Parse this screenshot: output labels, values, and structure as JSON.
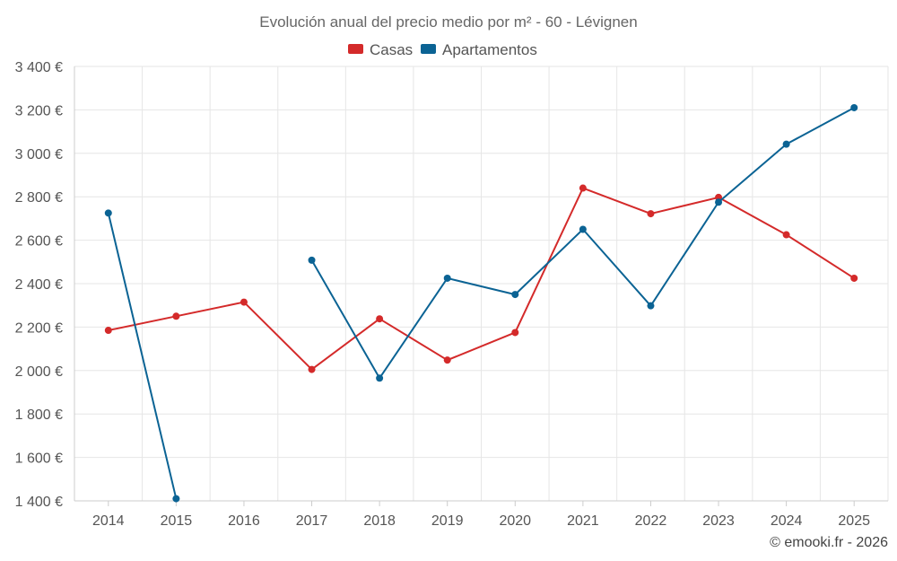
{
  "chart_data": {
    "type": "line",
    "title": "Evolución anual del precio medio por m² - 60 - Lévignen",
    "categories": [
      "2014",
      "2015",
      "2016",
      "2017",
      "2018",
      "2019",
      "2020",
      "2021",
      "2022",
      "2023",
      "2024",
      "2025"
    ],
    "ylim": [
      1400,
      3400
    ],
    "yticks": [
      1400,
      1600,
      1800,
      2000,
      2200,
      2400,
      2600,
      2800,
      3000,
      3200,
      3400
    ],
    "ytick_labels": [
      "1 400 €",
      "1 600 €",
      "1 800 €",
      "2 000 €",
      "2 200 €",
      "2 400 €",
      "2 600 €",
      "2 800 €",
      "3 000 €",
      "3 200 €",
      "3 400 €"
    ],
    "grid": true,
    "legend_position": "top-center",
    "series": [
      {
        "name": "Casas",
        "color": "#d42a2a",
        "values": [
          2185,
          2250,
          2315,
          2005,
          2238,
          2048,
          2175,
          2840,
          2722,
          2797,
          2625,
          2425
        ]
      },
      {
        "name": "Apartamentos",
        "color": "#0b6394",
        "values": [
          2725,
          1410,
          null,
          2508,
          1965,
          2425,
          2350,
          2650,
          2298,
          2775,
          3042,
          3210
        ]
      }
    ]
  },
  "credit": "© emooki.fr - 2026"
}
